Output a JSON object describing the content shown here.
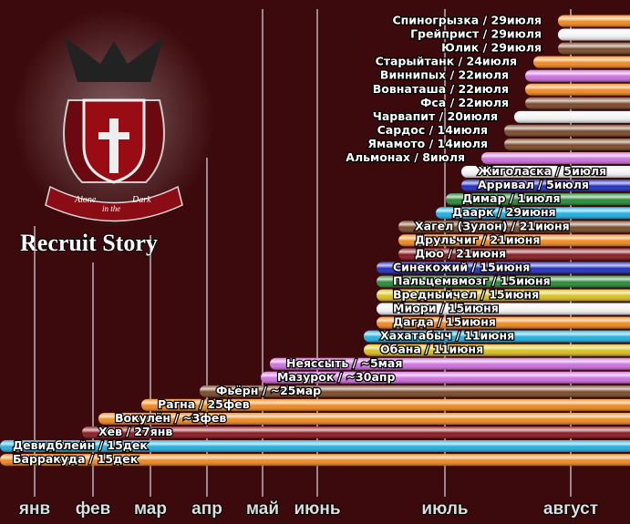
{
  "title": "Recruit Story",
  "logo_text": [
    "Alone",
    "in the",
    "Dark"
  ],
  "months": [
    "янв",
    "фев",
    "мар",
    "апр",
    "май",
    "июнь",
    "июль",
    "август"
  ],
  "rows": [
    {
      "label": "Спиногрызка / 29июля",
      "color": "#f08a20"
    },
    {
      "label": "Грейприст / 29июля",
      "color": "#f2f2f2"
    },
    {
      "label": "Юлик / 29июля",
      "color": "#7a4a2a"
    },
    {
      "label": "Старыйтанк / 24июля",
      "color": "#f08a20"
    },
    {
      "label": "Виннипых / 22июля",
      "color": "#d070e0"
    },
    {
      "label": "Вовнаташа / 22июля",
      "color": "#f08a20"
    },
    {
      "label": "Фса / 22июля",
      "color": "#7a4a2a"
    },
    {
      "label": "Чарвапит / 20июля",
      "color": "#f2f2f2"
    },
    {
      "label": "Сардос / 14июля",
      "color": "#7a4a2a"
    },
    {
      "label": "Ямамото / 14июля",
      "color": "#7a4a2a"
    },
    {
      "label": "Альмонах / 8июля",
      "color": "#d070e0"
    },
    {
      "label": "Жиголаска / 5июля",
      "color": "#f2f2f2"
    },
    {
      "label": "Арривал / 5июля",
      "color": "#2030c0"
    },
    {
      "label": "Димар / 1июля",
      "color": "#2a8a3a"
    },
    {
      "label": "Даарк / 29июня",
      "color": "#20b0e0"
    },
    {
      "label": "Хагел (Зулон) / 21июня",
      "color": "#7a4a2a"
    },
    {
      "label": "Друльчиг / 21июня",
      "color": "#f08a20"
    },
    {
      "label": "Дюо / 21июня",
      "color": "#8a1a22"
    },
    {
      "label": "Синекожий / 15июня",
      "color": "#2030c0"
    },
    {
      "label": "Пальцемвмозг / 15июня",
      "color": "#2a8a3a"
    },
    {
      "label": "Вредныйчел / 15июня",
      "color": "#d8c020"
    },
    {
      "label": "Миори / 15июня",
      "color": "#f2f2f2"
    },
    {
      "label": "Дагда / 15июня",
      "color": "#f08a20"
    },
    {
      "label": "Хахатабыч / 11июня",
      "color": "#20b0e0"
    },
    {
      "label": "Обана / 11июня",
      "color": "#d8c020"
    },
    {
      "label": "Неяссыть / ~5мая",
      "color": "#d070e0"
    },
    {
      "label": "Мазурок / ~30апр",
      "color": "#d070e0"
    },
    {
      "label": "Фьёрн / ~25мар",
      "color": "#7a4a2a"
    },
    {
      "label": "Рагна / 25фев",
      "color": "#f08a20"
    },
    {
      "label": "Вокулён / ~3фев",
      "color": "#f08a20"
    },
    {
      "label": "Хев / 27янв",
      "color": "#8a1a22"
    },
    {
      "label": "Девидблейн / 15дек",
      "color": "#20b0e0"
    },
    {
      "label": "Барракуда / 15дек",
      "color": "#f08a20"
    }
  ]
}
